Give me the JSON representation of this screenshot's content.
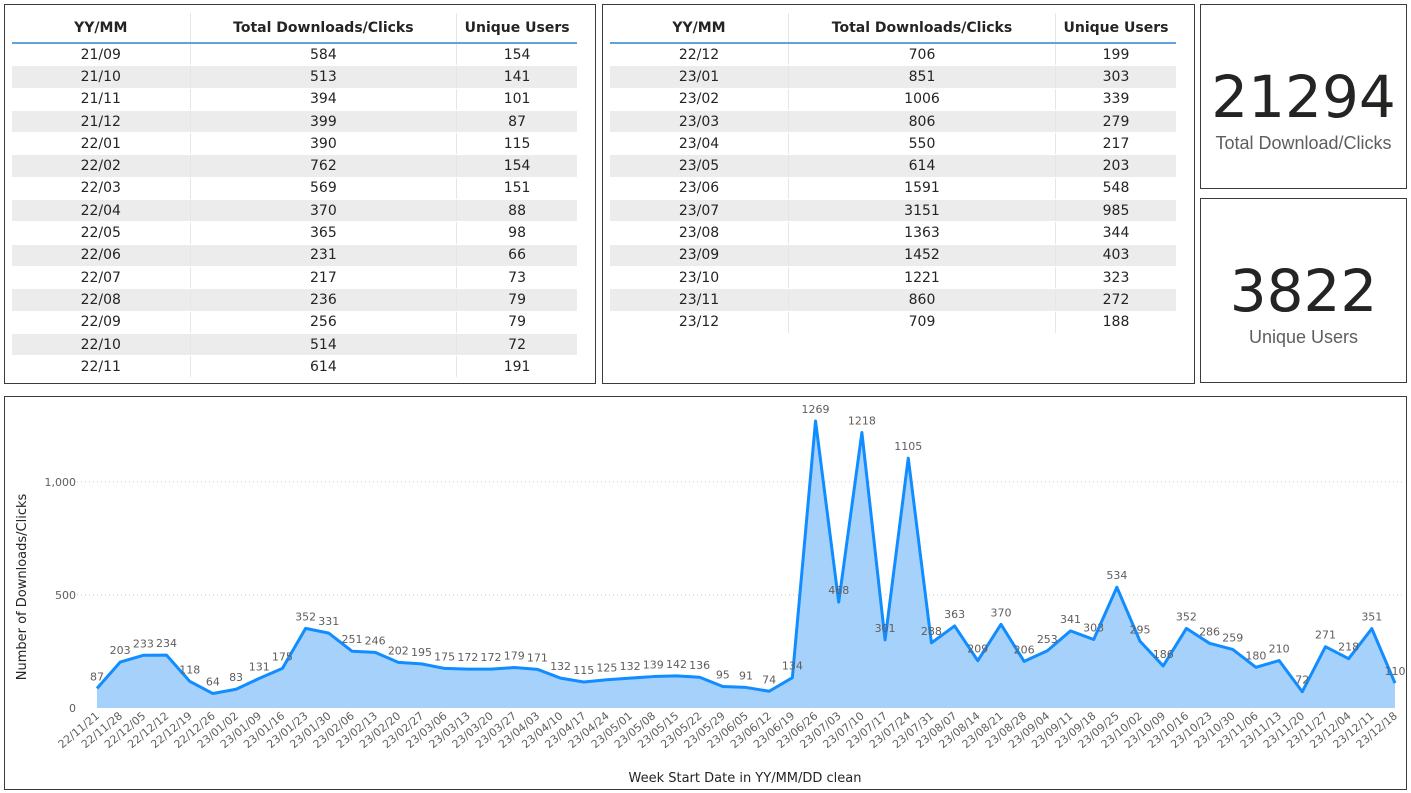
{
  "table1": {
    "headers": [
      "YY/MM",
      "Total Downloads/Clicks",
      "Unique Users"
    ],
    "rows": [
      [
        "21/09",
        "584",
        "154"
      ],
      [
        "21/10",
        "513",
        "141"
      ],
      [
        "21/11",
        "394",
        "101"
      ],
      [
        "21/12",
        "399",
        "87"
      ],
      [
        "22/01",
        "390",
        "115"
      ],
      [
        "22/02",
        "762",
        "154"
      ],
      [
        "22/03",
        "569",
        "151"
      ],
      [
        "22/04",
        "370",
        "88"
      ],
      [
        "22/05",
        "365",
        "98"
      ],
      [
        "22/06",
        "231",
        "66"
      ],
      [
        "22/07",
        "217",
        "73"
      ],
      [
        "22/08",
        "236",
        "79"
      ],
      [
        "22/09",
        "256",
        "79"
      ],
      [
        "22/10",
        "514",
        "72"
      ],
      [
        "22/11",
        "614",
        "191"
      ]
    ]
  },
  "table2": {
    "headers": [
      "YY/MM",
      "Total Downloads/Clicks",
      "Unique Users"
    ],
    "rows": [
      [
        "22/12",
        "706",
        "199"
      ],
      [
        "23/01",
        "851",
        "303"
      ],
      [
        "23/02",
        "1006",
        "339"
      ],
      [
        "23/03",
        "806",
        "279"
      ],
      [
        "23/04",
        "550",
        "217"
      ],
      [
        "23/05",
        "614",
        "203"
      ],
      [
        "23/06",
        "1591",
        "548"
      ],
      [
        "23/07",
        "3151",
        "985"
      ],
      [
        "23/08",
        "1363",
        "344"
      ],
      [
        "23/09",
        "1452",
        "403"
      ],
      [
        "23/10",
        "1221",
        "323"
      ],
      [
        "23/11",
        "860",
        "272"
      ],
      [
        "23/12",
        "709",
        "188"
      ]
    ]
  },
  "card_total": {
    "value": "21294",
    "label": "Total Download/Clicks"
  },
  "card_users": {
    "value": "3822",
    "label": "Unique Users"
  },
  "chart_data": {
    "type": "area",
    "xlabel": "Week Start Date in YY/MM/DD clean",
    "ylabel": "Number of Downloads/Clicks",
    "ylim": [
      0,
      1300
    ],
    "yticks": [
      0,
      500,
      1000
    ],
    "ytick_labels": [
      "0",
      "500",
      "1,000"
    ],
    "grid": "horizontal-dotted",
    "line_color": "#118dff",
    "fill_color": "#a5d1fb",
    "x": [
      "22/11/21",
      "22/11/28",
      "22/12/05",
      "22/12/12",
      "22/12/19",
      "22/12/26",
      "23/01/02",
      "23/01/09",
      "23/01/16",
      "23/01/23",
      "23/01/30",
      "23/02/06",
      "23/02/13",
      "23/02/20",
      "23/02/27",
      "23/03/06",
      "23/03/13",
      "23/03/20",
      "23/03/27",
      "23/04/03",
      "23/04/10",
      "23/04/17",
      "23/04/24",
      "23/05/01",
      "23/05/08",
      "23/05/15",
      "23/05/22",
      "23/05/29",
      "23/06/05",
      "23/06/12",
      "23/06/19",
      "23/06/26",
      "23/07/03",
      "23/07/10",
      "23/07/17",
      "23/07/24",
      "23/07/31",
      "23/08/07",
      "23/08/14",
      "23/08/21",
      "23/08/28",
      "23/09/04",
      "23/09/11",
      "23/09/18",
      "23/09/25",
      "23/10/02",
      "23/10/09",
      "23/10/16",
      "23/10/23",
      "23/10/30",
      "23/11/06",
      "23/11/13",
      "23/11/20",
      "23/11/27",
      "23/12/04",
      "23/12/11",
      "23/12/18"
    ],
    "values": [
      87,
      203,
      233,
      234,
      118,
      64,
      83,
      131,
      175,
      352,
      331,
      251,
      246,
      202,
      195,
      175,
      172,
      172,
      179,
      171,
      132,
      115,
      125,
      132,
      139,
      142,
      136,
      95,
      91,
      74,
      134,
      1269,
      468,
      1218,
      301,
      1105,
      288,
      363,
      209,
      370,
      206,
      253,
      341,
      303,
      534,
      295,
      186,
      352,
      286,
      259,
      180,
      210,
      72,
      271,
      218,
      351,
      110
    ]
  }
}
